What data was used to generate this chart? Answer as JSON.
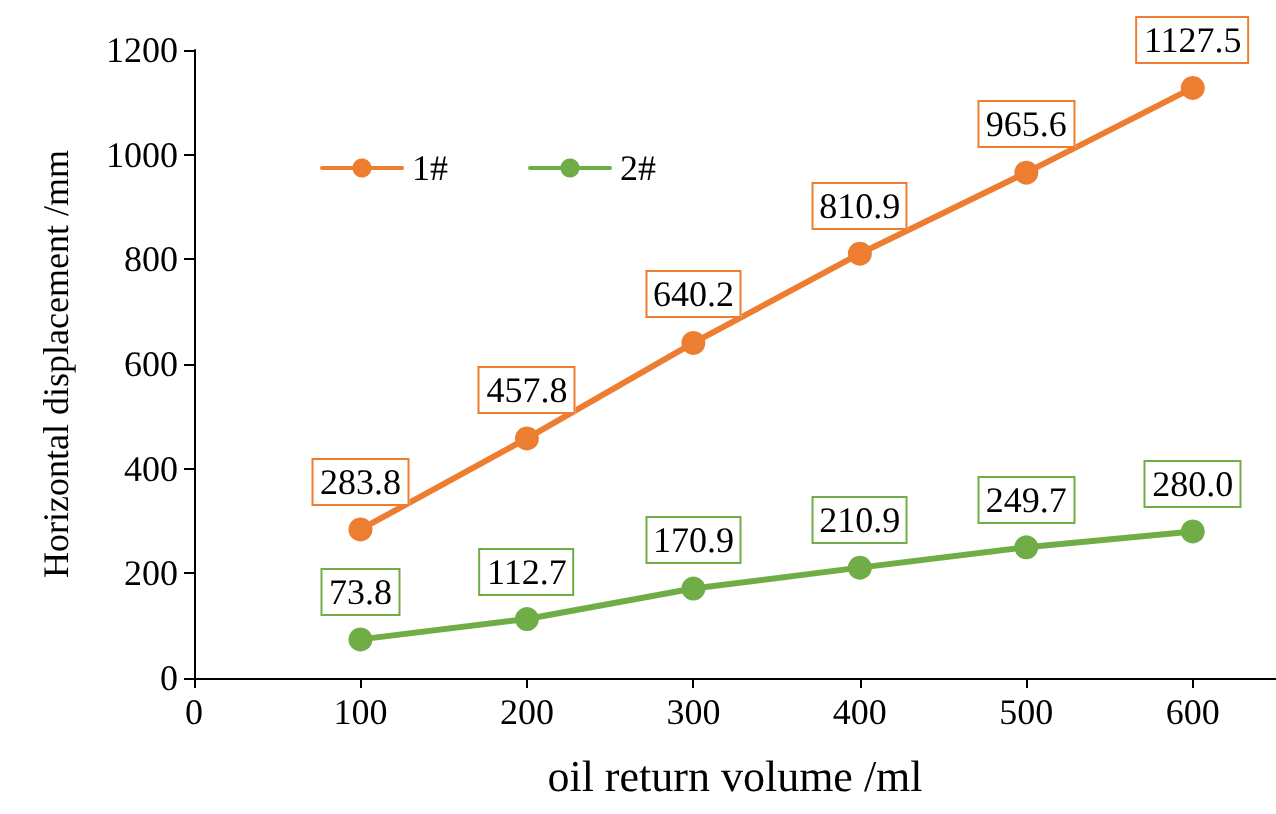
{
  "chart_data": {
    "type": "line",
    "xlabel": "oil return volume /ml",
    "ylabel": "Horizontal displacement /mm",
    "x": [
      100,
      200,
      300,
      400,
      500,
      600
    ],
    "series": [
      {
        "name": "1#",
        "color": "#ed7d31",
        "values": [
          283.8,
          457.8,
          640.2,
          810.9,
          965.6,
          1127.5
        ],
        "value_labels": [
          "283.8",
          "457.8",
          "640.2",
          "810.9",
          "965.6",
          "1127.5"
        ]
      },
      {
        "name": "2#",
        "color": "#70ad47",
        "values": [
          73.8,
          112.7,
          170.9,
          210.9,
          249.7,
          280.0
        ],
        "value_labels": [
          "73.8",
          "112.7",
          "170.9",
          "210.9",
          "249.7",
          "280.0"
        ]
      }
    ],
    "xlim": [
      0,
      650
    ],
    "xticks": [
      0,
      100,
      200,
      300,
      400,
      500,
      600
    ],
    "ylim": [
      0,
      1200
    ],
    "yticks": [
      0,
      200,
      400,
      600,
      800,
      1000,
      1200
    ],
    "grid": false,
    "legend": "top left",
    "marker": "circle",
    "line_style": "solid"
  }
}
